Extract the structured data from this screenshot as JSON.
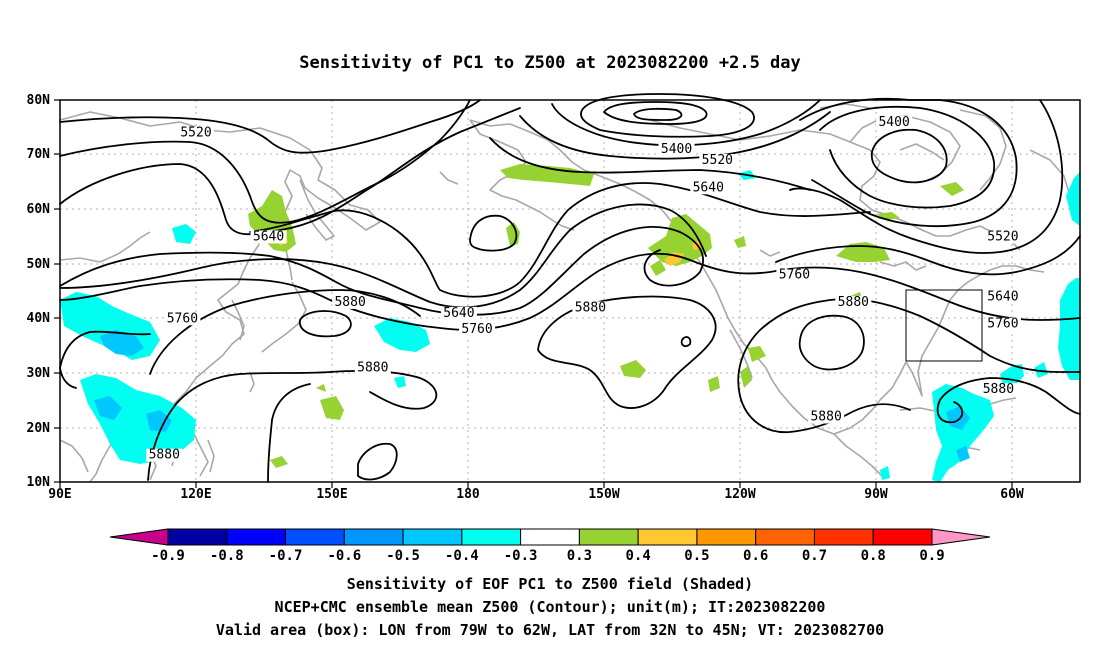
{
  "title": "Sensitivity of PC1 to Z500 at 2023082200 +2.5 day",
  "map": {
    "lat_labels": [
      "80N",
      "70N",
      "60N",
      "50N",
      "40N",
      "30N",
      "20N",
      "10N"
    ],
    "lon_labels": [
      "90E",
      "120E",
      "150E",
      "180",
      "150W",
      "120W",
      "90W",
      "60W"
    ],
    "contour_labels": [
      {
        "text": "5520",
        "lon": 120,
        "lat": 74
      },
      {
        "text": "5400",
        "lon": -134,
        "lat": 71
      },
      {
        "text": "5520",
        "lon": -125,
        "lat": 69
      },
      {
        "text": "5640",
        "lon": -127,
        "lat": 64
      },
      {
        "text": "5400",
        "lon": -86,
        "lat": 76
      },
      {
        "text": "5520",
        "lon": -62,
        "lat": 55
      },
      {
        "text": "5640",
        "lon": 136,
        "lat": 55
      },
      {
        "text": "5880",
        "lon": 154,
        "lat": 43
      },
      {
        "text": "5760",
        "lon": 117,
        "lat": 40
      },
      {
        "text": "5640",
        "lon": 178,
        "lat": 41
      },
      {
        "text": "5760",
        "lon": -178,
        "lat": 38
      },
      {
        "text": "5880",
        "lon": -153,
        "lat": 42
      },
      {
        "text": "5760",
        "lon": -108,
        "lat": 48
      },
      {
        "text": "5880",
        "lon": -95,
        "lat": 43
      },
      {
        "text": "5640",
        "lon": -62,
        "lat": 44
      },
      {
        "text": "5760",
        "lon": -62,
        "lat": 39
      },
      {
        "text": "5880",
        "lon": 159,
        "lat": 31
      },
      {
        "text": "5880",
        "lon": -63,
        "lat": 27
      },
      {
        "text": "5880",
        "lon": -101,
        "lat": 22
      },
      {
        "text": "5880",
        "lon": 113,
        "lat": 15
      }
    ]
  },
  "colorbar": {
    "labels": [
      "-0.9",
      "-0.8",
      "-0.7",
      "-0.6",
      "-0.5",
      "-0.4",
      "-0.3",
      "0.3",
      "0.4",
      "0.5",
      "0.6",
      "0.7",
      "0.8",
      "0.9"
    ],
    "colors": [
      "#c8008c",
      "#0000a0",
      "#0000ff",
      "#0050ff",
      "#0096ff",
      "#00c8ff",
      "#00fff0",
      "#ffffff",
      "#96d232",
      "#ffc832",
      "#ff9600",
      "#ff6400",
      "#ff3200",
      "#ff0000",
      "#ff96c8"
    ]
  },
  "captions": [
    "Sensitivity of EOF PC1 to Z500 field (Shaded)",
    "NCEP+CMC ensemble mean Z500 (Contour); unit(m); IT:2023082200",
    "Valid area (box): LON from 79W to 62W, LAT from 32N to 45N; VT: 2023082700"
  ]
}
